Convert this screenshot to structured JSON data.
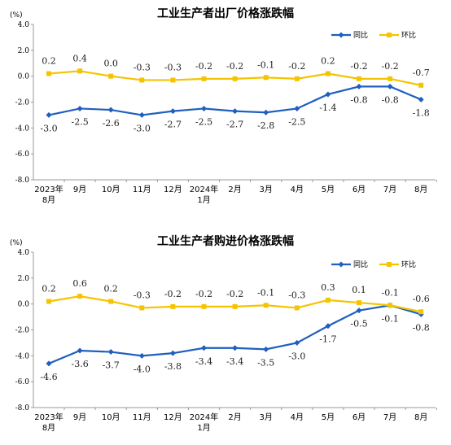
{
  "categories": [
    "2023年\n8月",
    "9月",
    "10月",
    "11月",
    "12月",
    "2024年\n1月",
    "2月",
    "3月",
    "4月",
    "5月",
    "6月",
    "7月",
    "8月"
  ],
  "colors": {
    "yoy": "#1f5fbf",
    "mom": "#f5c400"
  },
  "chart_data": [
    {
      "type": "line",
      "title": "工业生产者出厂价格涨跌幅",
      "unit": "(%)",
      "ylim": [
        -8.0,
        4.0
      ],
      "yticks": [
        "4.0",
        "2.0",
        "0.0",
        "-2.0",
        "-4.0",
        "-6.0",
        "-8.0"
      ],
      "grid": false,
      "legend": "top-right",
      "series": [
        {
          "name": "同比",
          "key": "yoy",
          "values": [
            -3.0,
            -2.5,
            -2.6,
            -3.0,
            -2.7,
            -2.5,
            -2.7,
            -2.8,
            -2.5,
            -1.4,
            -0.8,
            -0.8,
            -1.8
          ],
          "labels": [
            "-3.0",
            "-2.5",
            "-2.6",
            "-3.0",
            "-2.7",
            "-2.5",
            "-2.7",
            "-2.8",
            "-2.5",
            "-1.4",
            "-0.8",
            "-0.8",
            "-1.8"
          ]
        },
        {
          "name": "环比",
          "key": "mom",
          "values": [
            0.2,
            0.4,
            0.0,
            -0.3,
            -0.3,
            -0.2,
            -0.2,
            -0.1,
            -0.2,
            0.2,
            -0.2,
            -0.2,
            -0.7
          ],
          "labels": [
            "0.2",
            "0.4",
            "0.0",
            "-0.3",
            "-0.3",
            "-0.2",
            "-0.2",
            "-0.1",
            "-0.2",
            "0.2",
            "-0.2",
            "-0.2",
            "-0.7"
          ]
        }
      ]
    },
    {
      "type": "line",
      "title": "工业生产者购进价格涨跌幅",
      "unit": "(%)",
      "ylim": [
        -8.0,
        4.0
      ],
      "yticks": [
        "4.0",
        "2.0",
        "0.0",
        "-2.0",
        "-4.0",
        "-6.0",
        "-8.0"
      ],
      "grid": false,
      "legend": "top-right",
      "series": [
        {
          "name": "同比",
          "key": "yoy",
          "values": [
            -4.6,
            -3.6,
            -3.7,
            -4.0,
            -3.8,
            -3.4,
            -3.4,
            -3.5,
            -3.0,
            -1.7,
            -0.5,
            -0.1,
            -0.8
          ],
          "labels": [
            "-4.6",
            "-3.6",
            "-3.7",
            "-4.0",
            "-3.8",
            "-3.4",
            "-3.4",
            "-3.5",
            "-3.0",
            "-1.7",
            "-0.5",
            "-0.1",
            "-0.8"
          ]
        },
        {
          "name": "环比",
          "key": "mom",
          "values": [
            0.2,
            0.6,
            0.2,
            -0.3,
            -0.2,
            -0.2,
            -0.2,
            -0.1,
            -0.3,
            0.3,
            0.1,
            -0.1,
            -0.6
          ],
          "labels": [
            "0.2",
            "0.6",
            "0.2",
            "-0.3",
            "-0.2",
            "-0.2",
            "-0.2",
            "-0.1",
            "-0.3",
            "0.3",
            "0.1",
            "-0.1",
            "-0.6"
          ]
        }
      ]
    }
  ]
}
